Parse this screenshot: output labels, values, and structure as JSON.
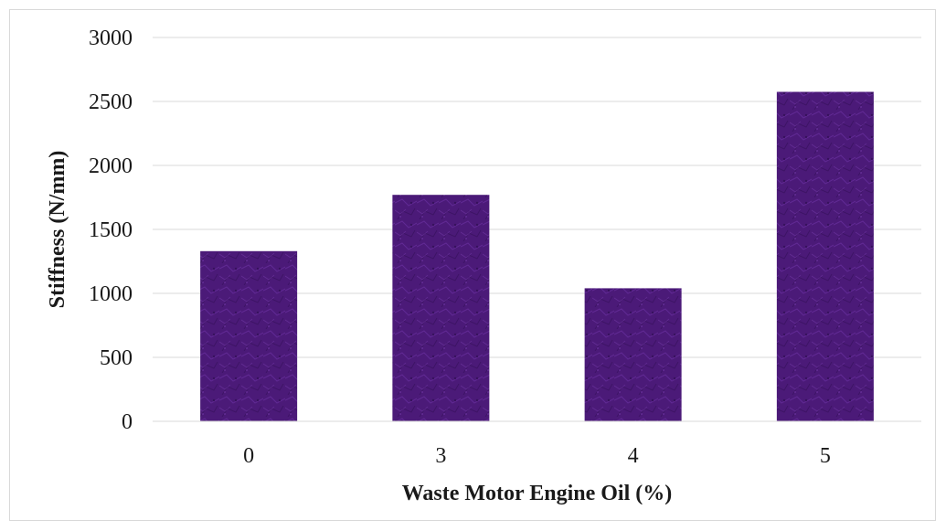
{
  "chart_data": {
    "type": "bar",
    "categories": [
      "0",
      "3",
      "4",
      "5"
    ],
    "values": [
      1330,
      1770,
      1040,
      2575
    ],
    "title": "",
    "xlabel": "Waste Motor Engine Oil (%)",
    "ylabel": "Stiffness (N/mm)",
    "ylim": [
      0,
      3000
    ],
    "yticks": [
      "0",
      "500",
      "1000",
      "1500",
      "2000",
      "2500",
      "3000"
    ],
    "grid": true,
    "legend": "none",
    "bar_color": "#4b1a78",
    "bar_highlight": "#6a2fa0"
  }
}
